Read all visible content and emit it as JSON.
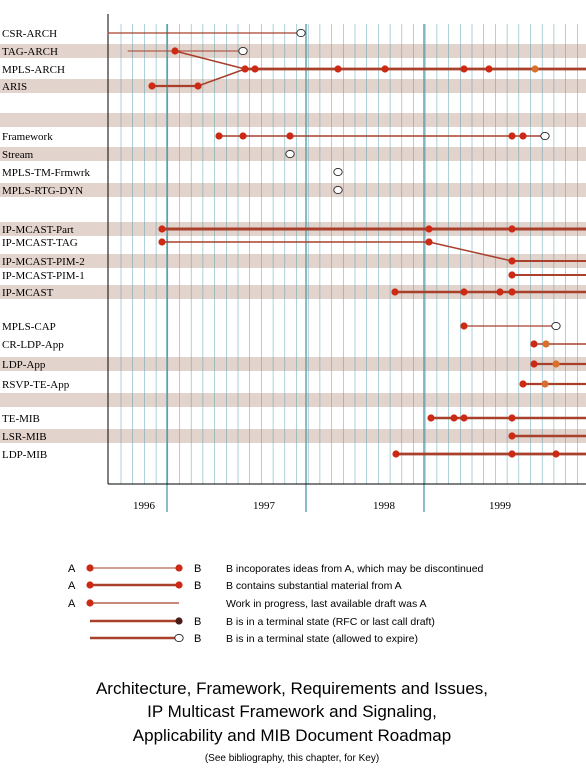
{
  "timeline": {
    "years": [
      "1996",
      "1997",
      "1998",
      "1999"
    ]
  },
  "rows": [
    {
      "label": "CSR-ARCH"
    },
    {
      "label": "TAG-ARCH"
    },
    {
      "label": "MPLS-ARCH"
    },
    {
      "label": "ARIS"
    },
    {
      "label": "Framework"
    },
    {
      "label": "Stream"
    },
    {
      "label": "MPLS-TM-Frmwrk"
    },
    {
      "label": "MPLS-RTG-DYN"
    },
    {
      "label": "IP-MCAST-Part"
    },
    {
      "label": "IP-MCAST-TAG"
    },
    {
      "label": "IP-MCAST-PIM-2"
    },
    {
      "label": "IP-MCAST-PIM-1"
    },
    {
      "label": "IP-MCAST"
    },
    {
      "label": "MPLS-CAP"
    },
    {
      "label": "CR-LDP-App"
    },
    {
      "label": "LDP-App"
    },
    {
      "label": "RSVP-TE-App"
    },
    {
      "label": "TE-MIB"
    },
    {
      "label": "LSR-MIB"
    },
    {
      "label": "LDP-MIB"
    }
  ],
  "legend": [
    {
      "a": "A",
      "b": "B",
      "text": "B incoporates ideas from A, which may be discontinued"
    },
    {
      "a": "A",
      "b": "B",
      "text": "B contains substantial material from A"
    },
    {
      "a": "A",
      "b": "",
      "text": "Work in progress, last available draft was  A"
    },
    {
      "a": "",
      "b": "B",
      "text": "B is in a terminal state (RFC or last call draft)"
    },
    {
      "a": "",
      "b": "B",
      "text": "B is in a terminal state (allowed to expire)"
    }
  ],
  "title": {
    "line1": "Architecture, Framework, Requirements and Issues,",
    "line2": "IP Multicast Framework and Signaling,",
    "line3": "Applicability and MIB Document Roadmap",
    "note": "(See bibliography, this chapter, for Key)"
  },
  "colors": {
    "band": "#e3d3cd",
    "grid": "#4a9aa8",
    "line": "#a8402c",
    "dot": "#cc2a14",
    "dot_light": "#d8702e",
    "axis": "#000000"
  }
}
